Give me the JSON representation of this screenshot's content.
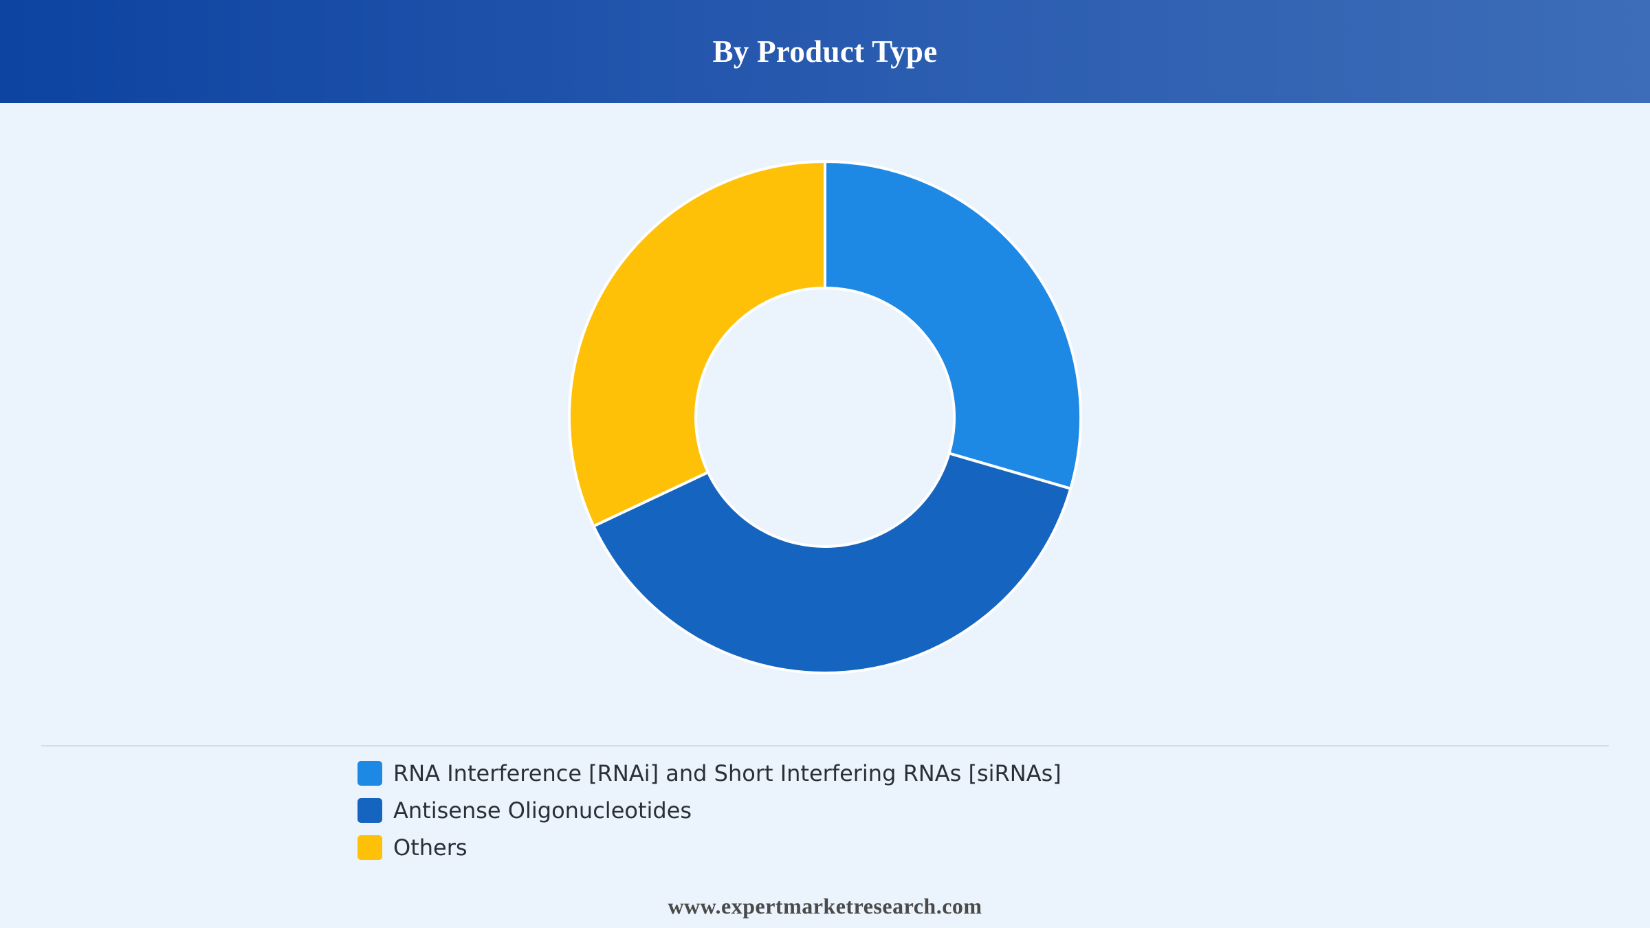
{
  "header": {
    "title": "By Product Type"
  },
  "chart_data": {
    "type": "pie",
    "variant": "donut",
    "title": "By Product Type",
    "categories": [
      "RNA Interference [RNAi] and Short Interfering RNAs [siRNAs]",
      "Antisense Oligonucleotides",
      "Others"
    ],
    "values": [
      29.5,
      38.5,
      32.0
    ],
    "colors": [
      "#1e88e5",
      "#1565c0",
      "#ffc107"
    ],
    "start_angle": "12 o'clock",
    "direction": "clockwise",
    "legend_position": "bottom-left"
  },
  "footer": {
    "text": "www.expertmarketresearch.com"
  }
}
